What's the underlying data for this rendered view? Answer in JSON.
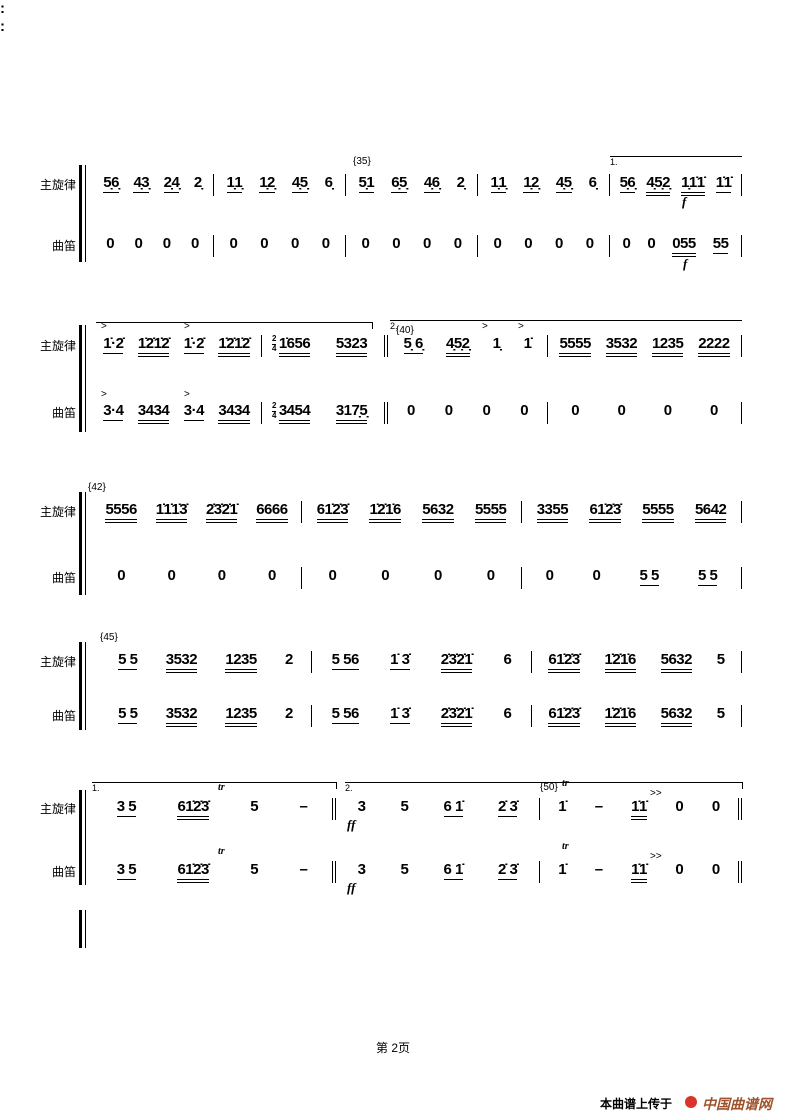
{
  "parts": {
    "melody": "主旋律",
    "dizi": "曲笛"
  },
  "systems": [
    {
      "top": [
        [
          {
            "t": "5̣6̣",
            "u": 1
          },
          {
            "t": "4̣3̣",
            "u": 1
          },
          {
            "t": "2̣4̣",
            "u": 1
          },
          {
            "t": "2̣",
            "u": 0
          }
        ],
        [
          {
            "t": "1̣1̣",
            "u": 1
          },
          {
            "t": "1̣2̣",
            "u": 1
          },
          {
            "t": "4̣5̣",
            "u": 1
          },
          {
            "t": "6̣",
            "u": 0
          }
        ],
        [
          {
            "t": "5̣1",
            "u": 1
          },
          {
            "t": "6̣5̣",
            "u": 1
          },
          {
            "t": "4̣6̣",
            "u": 1
          },
          {
            "t": "2̣",
            "u": 0
          }
        ],
        [
          {
            "t": "1̣1̣",
            "u": 1
          },
          {
            "t": "1̣2̣",
            "u": 1
          },
          {
            "t": "4̣5̣",
            "u": 1
          },
          {
            "t": "6̣",
            "u": 0
          }
        ],
        [
          {
            "t": "5̣6̣",
            "u": 1
          },
          {
            "t": "4̣5̣2̣",
            "u": 2
          },
          {
            "t": "1̣1̇1̇",
            "u": 2
          },
          {
            "t": "1̇1̇",
            "u": 1
          }
        ]
      ],
      "bottom": [
        [
          {
            "t": "0",
            "u": 0
          },
          {
            "t": "0",
            "u": 0
          },
          {
            "t": "0",
            "u": 0
          },
          {
            "t": "0",
            "u": 0
          }
        ],
        [
          {
            "t": "0",
            "u": 0
          },
          {
            "t": "0",
            "u": 0
          },
          {
            "t": "0",
            "u": 0
          },
          {
            "t": "0",
            "u": 0
          }
        ],
        [
          {
            "t": "0",
            "u": 0
          },
          {
            "t": "0",
            "u": 0
          },
          {
            "t": "0",
            "u": 0
          },
          {
            "t": "0",
            "u": 0
          }
        ],
        [
          {
            "t": "0",
            "u": 0
          },
          {
            "t": "0",
            "u": 0
          },
          {
            "t": "0",
            "u": 0
          },
          {
            "t": "0",
            "u": 0
          }
        ],
        [
          {
            "t": "0",
            "u": 0
          },
          {
            "t": "0",
            "u": 0
          },
          {
            "t": "055",
            "u": 2
          },
          {
            "t": "55",
            "u": 1
          }
        ]
      ]
    },
    {
      "top": [
        [
          {
            "t": "1̇·2̇",
            "u": 1
          },
          {
            "t": "1̇2̇1̇2̇",
            "u": 2
          },
          {
            "t": "1̇·2̇",
            "u": 1
          },
          {
            "t": "1̇2̇1̇2̇",
            "u": 2
          }
        ],
        [
          {
            "t": "1̇656",
            "u": 2
          },
          {
            "t": "5323",
            "u": 2
          }
        ],
        [
          {
            "t": "5̣ 6̣",
            "u": 1
          },
          {
            "t": "4̣5̣2̣",
            "u": 2
          },
          {
            "t": "1̣",
            "u": 0
          },
          {
            "t": "1̇",
            "u": 0
          }
        ],
        [
          {
            "t": "5555",
            "u": 2
          },
          {
            "t": "3532",
            "u": 2
          },
          {
            "t": "1235",
            "u": 2
          },
          {
            "t": "2222",
            "u": 2
          }
        ]
      ],
      "bottom": [
        [
          {
            "t": "3·4",
            "u": 1
          },
          {
            "t": "3434",
            "u": 2
          },
          {
            "t": "3·4",
            "u": 1
          },
          {
            "t": "3434",
            "u": 2
          }
        ],
        [
          {
            "t": "3454",
            "u": 2
          },
          {
            "t": "317̣5̣",
            "u": 2
          }
        ],
        [
          {
            "t": "0",
            "u": 0
          },
          {
            "t": "0",
            "u": 0
          },
          {
            "t": "0",
            "u": 0
          },
          {
            "t": "0",
            "u": 0
          }
        ],
        [
          {
            "t": "0",
            "u": 0
          },
          {
            "t": "0",
            "u": 0
          },
          {
            "t": "0",
            "u": 0
          },
          {
            "t": "0",
            "u": 0
          }
        ]
      ]
    },
    {
      "top": [
        [
          {
            "t": "5556",
            "u": 2
          },
          {
            "t": "1̇1̇1̇3̇",
            "u": 2
          },
          {
            "t": "2̇3̇2̇1̇",
            "u": 2
          },
          {
            "t": "6666",
            "u": 2
          }
        ],
        [
          {
            "t": "61̇2̇3̇",
            "u": 2
          },
          {
            "t": "1̇2̇1̇6",
            "u": 2
          },
          {
            "t": "5632",
            "u": 2
          },
          {
            "t": "5555",
            "u": 2
          }
        ],
        [
          {
            "t": "3355",
            "u": 2
          },
          {
            "t": "61̇2̇3̇",
            "u": 2
          },
          {
            "t": "5555",
            "u": 2
          },
          {
            "t": "5642",
            "u": 2
          }
        ]
      ],
      "bottom": [
        [
          {
            "t": "0",
            "u": 0
          },
          {
            "t": "0",
            "u": 0
          },
          {
            "t": "0",
            "u": 0
          },
          {
            "t": "0",
            "u": 0
          }
        ],
        [
          {
            "t": "0",
            "u": 0
          },
          {
            "t": "0",
            "u": 0
          },
          {
            "t": "0",
            "u": 0
          },
          {
            "t": "0",
            "u": 0
          }
        ],
        [
          {
            "t": "0",
            "u": 0
          },
          {
            "t": "0",
            "u": 0
          },
          {
            "t": "5 5",
            "u": 1
          },
          {
            "t": "5 5",
            "u": 1
          }
        ]
      ]
    },
    {
      "top": [
        [
          {
            "t": "5 5",
            "u": 1
          },
          {
            "t": "3532",
            "u": 2
          },
          {
            "t": "1235",
            "u": 2
          },
          {
            "t": "2",
            "u": 0
          }
        ],
        [
          {
            "t": "5 56",
            "u": 1
          },
          {
            "t": "1̇ 3̇",
            "u": 1
          },
          {
            "t": "2̇3̇2̇1̇",
            "u": 2
          },
          {
            "t": "6",
            "u": 0
          }
        ],
        [
          {
            "t": "61̇2̇3̇",
            "u": 2
          },
          {
            "t": "1̇2̇1̇6",
            "u": 2
          },
          {
            "t": "5632",
            "u": 2
          },
          {
            "t": "5",
            "u": 0
          }
        ]
      ],
      "bottom": [
        [
          {
            "t": "5 5",
            "u": 1
          },
          {
            "t": "3532",
            "u": 2
          },
          {
            "t": "1235",
            "u": 2
          },
          {
            "t": "2",
            "u": 0
          }
        ],
        [
          {
            "t": "5 56",
            "u": 1
          },
          {
            "t": "1̇ 3̇",
            "u": 1
          },
          {
            "t": "2̇3̇2̇1̇",
            "u": 2
          },
          {
            "t": "6",
            "u": 0
          }
        ],
        [
          {
            "t": "61̇2̇3̇",
            "u": 2
          },
          {
            "t": "1̇2̇1̇6",
            "u": 2
          },
          {
            "t": "5632",
            "u": 2
          },
          {
            "t": "5",
            "u": 0
          }
        ]
      ]
    },
    {
      "top": [
        [
          {
            "t": "3 5",
            "u": 1
          },
          {
            "t": "61̇2̇3̇",
            "u": 2
          },
          {
            "t": "5",
            "u": 0
          },
          {
            "t": "–",
            "u": 0
          }
        ],
        [
          {
            "t": "3",
            "u": 0
          },
          {
            "t": "5",
            "u": 0
          },
          {
            "t": "6 1̇",
            "u": 1
          },
          {
            "t": "2̇ 3̇",
            "u": 1
          }
        ],
        [
          {
            "t": "1̇",
            "u": 0
          },
          {
            "t": "–",
            "u": 0
          },
          {
            "t": "1̇1̇",
            "u": 2
          },
          {
            "t": "0",
            "u": 0
          },
          {
            "t": "0",
            "u": 0
          }
        ]
      ],
      "bottom": [
        [
          {
            "t": "3 5",
            "u": 1
          },
          {
            "t": "61̇2̇3̇",
            "u": 2
          },
          {
            "t": "5",
            "u": 0
          },
          {
            "t": "–",
            "u": 0
          }
        ],
        [
          {
            "t": "3",
            "u": 0
          },
          {
            "t": "5",
            "u": 0
          },
          {
            "t": "6 1̇",
            "u": 1
          },
          {
            "t": "2̇ 3̇",
            "u": 1
          }
        ],
        [
          {
            "t": "1̇",
            "u": 0
          },
          {
            "t": "–",
            "u": 0
          },
          {
            "t": "1̇1̇",
            "u": 2
          },
          {
            "t": "0",
            "u": 0
          },
          {
            "t": "0",
            "u": 0
          }
        ]
      ]
    }
  ],
  "marks": {
    "m35": "{35}",
    "m40": "{40}",
    "m42": "{42}",
    "m45": "{45}",
    "m50": "{50}",
    "volta1": "1.",
    "volta2": "2.",
    "forte": "f",
    "fortissimo": "ff",
    "trill": "tr",
    "accent": ">",
    "double_accent": ">>",
    "fermata": "𝄐",
    "time_sig_num": "2",
    "time_sig_den": "4",
    "repeat": ":"
  },
  "footer": {
    "page": "第 2页",
    "upload": "本曲谱上传于",
    "logo": "中国曲谱网",
    "logo_color": "#a0522d",
    "logo_icon_color": "#d9342b"
  }
}
